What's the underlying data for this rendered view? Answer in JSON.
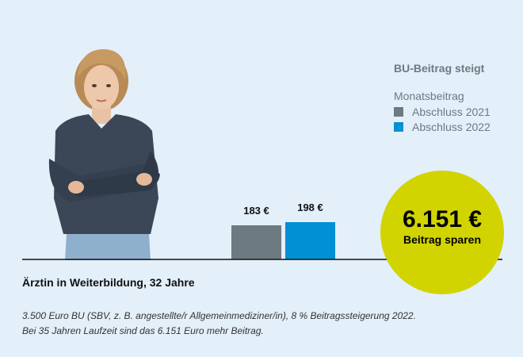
{
  "chart_data": {
    "type": "bar",
    "title": "BU-Beitrag steigt",
    "ylabel": "Monatsbeitrag",
    "categories": [
      "Abschluss 2021",
      "Abschluss 2022"
    ],
    "values": [
      183,
      198
    ],
    "value_labels": [
      "183 €",
      "198 €"
    ],
    "ylim": [
      0,
      198
    ],
    "colors": [
      "#6e7a81",
      "#0090d4"
    ],
    "legend_position": "top-right",
    "grid": false
  },
  "savings": {
    "value": "6.151 €",
    "caption": "Beitrag sparen",
    "color": "#d1d400"
  },
  "profile": {
    "heading": "Ärztin in Weiterbildung, 32 Jahre",
    "note_line1": "3.500 Euro BU (SBV, z. B. angestellte/r Allgemeinmediziner/in), 8 % Beitragssteigerung 2022.",
    "note_line2": "Bei 35 Jahren Laufzeit sind das 6.151 Euro mehr Beitrag."
  },
  "image": {
    "person_icon": "woman-portrait-icon"
  }
}
